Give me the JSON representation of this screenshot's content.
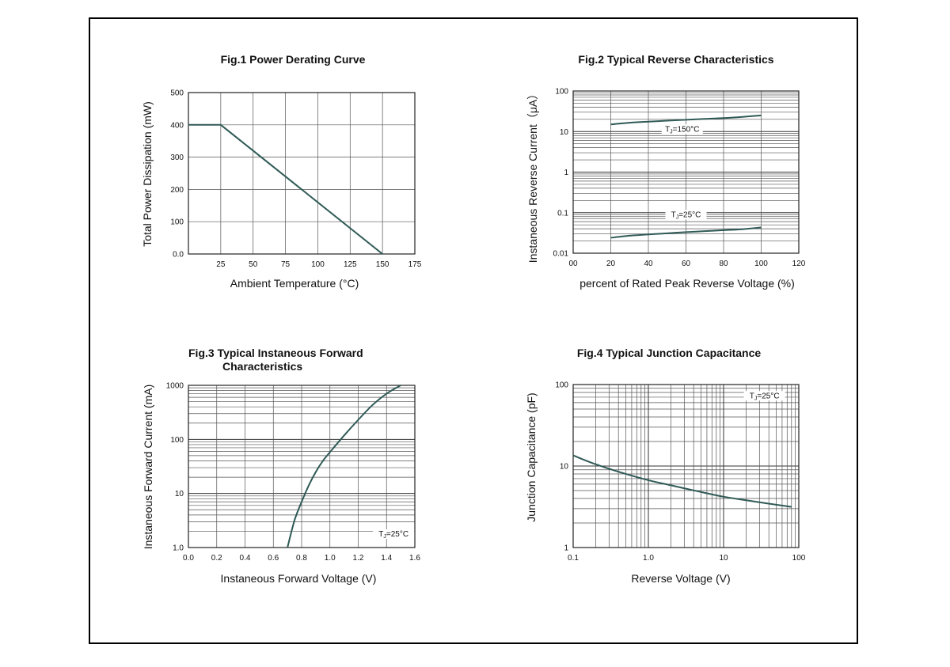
{
  "chart_data": [
    {
      "type": "line",
      "title": "Fig.1  Power Derating Curve",
      "xlabel": "Ambient Temperature (°C)",
      "ylabel": "Total Power Dissipation  (mW)",
      "xlim": [
        0,
        175
      ],
      "ylim": [
        0,
        500
      ],
      "xticks": [
        25,
        50,
        75,
        100,
        125,
        150,
        175
      ],
      "xtick_labels": [
        "25",
        "50",
        "75",
        "100",
        "125",
        "150",
        "175"
      ],
      "yticks": [
        0,
        100,
        200,
        300,
        400,
        500
      ],
      "ytick_labels": [
        "0.0",
        "100",
        "200",
        "300",
        "400",
        "500"
      ],
      "xgrid": [
        25,
        50,
        75,
        100,
        125,
        150
      ],
      "ygrid": [
        100,
        200,
        300,
        400
      ],
      "x_scale": "linear",
      "y_scale": "linear",
      "grid": true,
      "series": [
        {
          "x": [
            0,
            25,
            150
          ],
          "y": [
            400,
            400,
            0
          ]
        }
      ],
      "annotations": []
    },
    {
      "type": "line",
      "title": "Fig.2  Typical Reverse Characteristics",
      "xlabel": "percent of Rated  Peak Reverse Voltage (%)",
      "ylabel": "Instaneous Reverse Current（μA）",
      "xlim": [
        0,
        120
      ],
      "ylim": [
        0.01,
        100
      ],
      "x_scale": "linear",
      "y_scale": "log",
      "xticks": [
        0,
        20,
        40,
        60,
        80,
        100,
        120
      ],
      "xtick_labels": [
        "00",
        "20",
        "40",
        "60",
        "80",
        "100",
        "120"
      ],
      "yticks": [
        0.01,
        0.1,
        1,
        10,
        100
      ],
      "ytick_labels": [
        "0.01",
        "0.1",
        "1",
        "10",
        "100"
      ],
      "xgrid": [
        20,
        40,
        60,
        80,
        100
      ],
      "grid": true,
      "series": [
        {
          "name": "TJ=150°C",
          "x": [
            20,
            30,
            40,
            50,
            60,
            70,
            80,
            90,
            100
          ],
          "y": [
            15,
            16.5,
            17.5,
            18.5,
            19.5,
            20.5,
            21.5,
            23,
            25
          ]
        },
        {
          "name": "TJ=25°C",
          "x": [
            20,
            30,
            40,
            50,
            60,
            70,
            80,
            90,
            100
          ],
          "y": [
            0.024,
            0.027,
            0.029,
            0.031,
            0.033,
            0.035,
            0.037,
            0.039,
            0.043
          ]
        }
      ],
      "annotations": [
        {
          "text": "TJ=150°C",
          "x": 58,
          "y": 10
        },
        {
          "text": "TJ=25°C",
          "x": 60,
          "y": 0.078
        }
      ]
    },
    {
      "type": "line",
      "title": "Fig.3  Typical Instaneous Forward",
      "subtitle": "Characteristics",
      "xlabel": "Instaneous Forward Voltage (V)",
      "ylabel": "Instaneous Forward Current (mA)",
      "xlim": [
        0,
        1.6
      ],
      "ylim": [
        1,
        1000
      ],
      "x_scale": "linear",
      "y_scale": "log",
      "xticks": [
        0,
        0.2,
        0.4,
        0.6,
        0.8,
        1.0,
        1.2,
        1.4,
        1.6
      ],
      "xtick_labels": [
        "0.0",
        "0.2",
        "0.4",
        "0.6",
        "0.8",
        "1.0",
        "1.2",
        "1.4",
        "1.6"
      ],
      "yticks": [
        1,
        10,
        100,
        1000
      ],
      "ytick_labels": [
        "1.0",
        "10",
        "100",
        "1000"
      ],
      "xgrid": [
        0.2,
        0.4,
        0.6,
        0.8,
        1.0,
        1.2,
        1.4
      ],
      "grid": true,
      "series": [
        {
          "x": [
            0.7,
            0.75,
            0.8,
            0.85,
            0.9,
            0.95,
            1.0,
            1.1,
            1.2,
            1.3,
            1.4,
            1.5
          ],
          "y": [
            1,
            3.2,
            7,
            14,
            25,
            40,
            58,
            118,
            230,
            430,
            700,
            1000
          ]
        }
      ],
      "annotations": [
        {
          "text": "TJ=25°C",
          "x": 1.45,
          "y": 1.6
        }
      ]
    },
    {
      "type": "line",
      "title": "Fig.4  Typical Junction Capacitance",
      "xlabel": "Reverse  Voltage (V)",
      "ylabel": "Junction Capacitance (pF)",
      "xlim": [
        0.1,
        100
      ],
      "ylim": [
        1,
        100
      ],
      "x_scale": "log",
      "y_scale": "log",
      "xticks": [
        0.1,
        1,
        10,
        100
      ],
      "xtick_labels": [
        "0.1",
        "1.0",
        "10",
        "100"
      ],
      "yticks": [
        1,
        10,
        100
      ],
      "ytick_labels": [
        "1",
        "10",
        "100"
      ],
      "grid": true,
      "series": [
        {
          "x": [
            0.1,
            0.2,
            0.5,
            1,
            2,
            5,
            10,
            20,
            50,
            80
          ],
          "y": [
            13.5,
            10.5,
            8,
            6.7,
            5.8,
            4.8,
            4.2,
            3.8,
            3.35,
            3.15
          ]
        }
      ],
      "annotations": [
        {
          "text": "TJ=25°C",
          "x": 35,
          "y": 68
        }
      ]
    }
  ]
}
